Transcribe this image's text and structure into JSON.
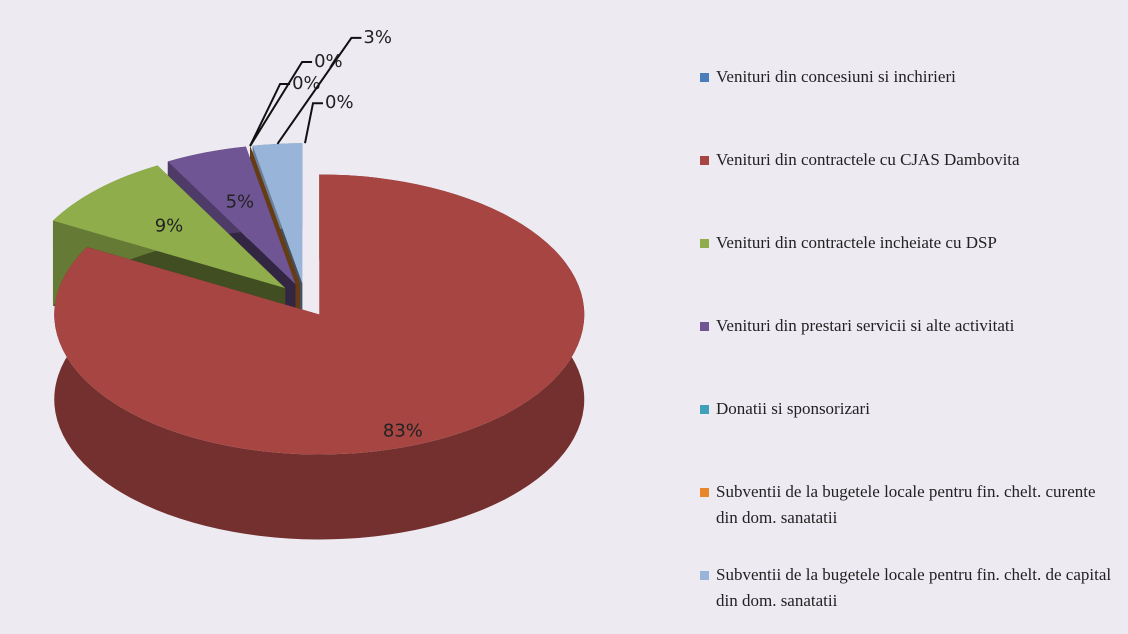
{
  "chart_data": {
    "type": "pie3d",
    "series": [
      {
        "name": "Venituri din concesiuni si inchirieri",
        "color": "#4a7ebb",
        "values": [
          0
        ],
        "value_labels": [
          "0%"
        ]
      },
      {
        "name": "Venituri din contractele cu CJAS Dambovita",
        "color": "#a64541",
        "values": [
          83
        ],
        "value_labels": [
          "83%"
        ]
      },
      {
        "name": "Venituri din contractele incheiate cu DSP",
        "color": "#8fae4b",
        "values": [
          9
        ],
        "value_labels": [
          "9%"
        ]
      },
      {
        "name": "Venituri din prestari servicii si alte activitati",
        "color": "#6f5594",
        "values": [
          5
        ],
        "value_labels": [
          "5%"
        ]
      },
      {
        "name": "Donatii si sponsorizari",
        "color": "#3fa1b9",
        "values": [
          0
        ],
        "value_labels": [
          "0%"
        ]
      },
      {
        "name": "Subventii de la bugetele locale pentru fin. chelt. curente din dom. sanatatii",
        "color": "#e8862b",
        "values": [
          0
        ],
        "value_labels": [
          "0%"
        ]
      },
      {
        "name": "Subventii de la bugetele locale pentru fin. chelt. de capital din dom. sanatatii",
        "color": "#98b4d8",
        "values": [
          3
        ],
        "value_labels": [
          "3%"
        ]
      }
    ],
    "legend": "right"
  }
}
